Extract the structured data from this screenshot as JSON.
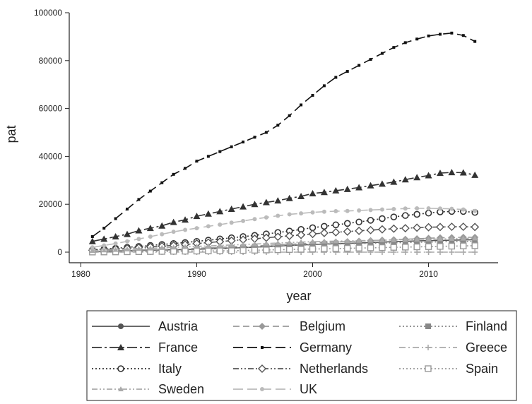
{
  "chart_data": {
    "type": "line",
    "title": "",
    "xlabel": "year",
    "ylabel": "pat",
    "xlim": [
      1979,
      2016
    ],
    "ylim": [
      0,
      100000
    ],
    "xticks": [
      1980,
      1990,
      2000,
      2010
    ],
    "xtick_labels": [
      "1980",
      "1990",
      "2000",
      "2010"
    ],
    "yticks": [
      0,
      20000,
      40000,
      60000,
      80000,
      100000
    ],
    "ytick_labels": [
      "0",
      "20000",
      "40000",
      "60000",
      "80000",
      "100000"
    ],
    "grid": false,
    "legend_position": "bottom",
    "x": [
      1981,
      1982,
      1983,
      1984,
      1985,
      1986,
      1987,
      1988,
      1989,
      1990,
      1991,
      1992,
      1993,
      1994,
      1995,
      1996,
      1997,
      1998,
      1999,
      2000,
      2001,
      2002,
      2003,
      2004,
      2005,
      2006,
      2007,
      2008,
      2009,
      2010,
      2011,
      2012,
      2013,
      2014
    ],
    "series": [
      {
        "name": "Austria",
        "marker": "circle",
        "dash": "solid",
        "color": "#555555",
        "values": [
          300,
          400,
          500,
          600,
          700,
          800,
          900,
          1000,
          1100,
          1200,
          1400,
          1500,
          1700,
          1900,
          2100,
          2300,
          2500,
          2800,
          3000,
          3200,
          3400,
          3500,
          3700,
          3800,
          4000,
          4200,
          4400,
          4500,
          4700,
          4800,
          4900,
          5000,
          5100,
          5200
        ]
      },
      {
        "name": "Belgium",
        "marker": "diamond",
        "dash": "dash",
        "color": "#999999",
        "values": [
          400,
          500,
          600,
          700,
          900,
          1000,
          1100,
          1200,
          1400,
          1600,
          1800,
          2000,
          2200,
          2400,
          2600,
          2800,
          3100,
          3300,
          3500,
          3800,
          4000,
          4200,
          4400,
          4600,
          4800,
          5000,
          5200,
          5400,
          5600,
          5800,
          6000,
          6100,
          6200,
          6200
        ]
      },
      {
        "name": "Finland",
        "marker": "square",
        "dash": "dot",
        "color": "#888888",
        "values": [
          150,
          200,
          300,
          400,
          500,
          600,
          700,
          800,
          900,
          1100,
          1300,
          1500,
          1700,
          1900,
          2100,
          2300,
          2500,
          2700,
          2900,
          3100,
          3300,
          3400,
          3500,
          3600,
          3700,
          3800,
          3900,
          4000,
          4100,
          4200,
          4300,
          4400,
          4400,
          4500
        ]
      },
      {
        "name": "France",
        "marker": "triangle",
        "dash": "longdash-dot",
        "color": "#333333",
        "values": [
          4500,
          5500,
          6500,
          7500,
          9000,
          10000,
          11000,
          12500,
          13500,
          15000,
          16000,
          17000,
          18000,
          19000,
          20000,
          20800,
          21500,
          22500,
          23300,
          24500,
          25000,
          25700,
          26300,
          27000,
          27800,
          28500,
          29300,
          30300,
          31200,
          32000,
          33000,
          33300,
          33200,
          32200
        ]
      },
      {
        "name": "Germany",
        "marker": "smallsquare",
        "dash": "longdash",
        "color": "#111111",
        "values": [
          6500,
          10000,
          14000,
          18000,
          22000,
          25500,
          29000,
          32500,
          35000,
          38000,
          40000,
          42000,
          44000,
          46000,
          48000,
          50000,
          53000,
          57000,
          61500,
          65500,
          69500,
          73000,
          75500,
          78000,
          80500,
          83000,
          85500,
          87500,
          89000,
          90300,
          91000,
          91500,
          90500,
          88000
        ]
      },
      {
        "name": "Greece",
        "marker": "plus",
        "dash": "dash-dot",
        "color": "#aaaaaa",
        "values": [
          0,
          0,
          0,
          0,
          0,
          0,
          0,
          0,
          0,
          0,
          0,
          0,
          0,
          0,
          0,
          0,
          0,
          0,
          0,
          0,
          0,
          0,
          0,
          0,
          0,
          0,
          0,
          0,
          0,
          0,
          0,
          0,
          0,
          0
        ]
      },
      {
        "name": "Italy",
        "marker": "ring",
        "dash": "dot",
        "color": "#333333",
        "values": [
          1000,
          1300,
          1600,
          2000,
          2400,
          2800,
          3200,
          3600,
          4000,
          4500,
          5000,
          5500,
          6000,
          6500,
          7000,
          7600,
          8200,
          8800,
          9500,
          10200,
          10800,
          11400,
          12000,
          12600,
          13300,
          14000,
          14700,
          15300,
          15800,
          16300,
          16800,
          17000,
          17000,
          16600
        ]
      },
      {
        "name": "Netherlands",
        "marker": "hollowdiamond",
        "dash": "dash-dot-dot",
        "color": "#555555",
        "values": [
          800,
          1000,
          1300,
          1600,
          1900,
          2200,
          2500,
          2800,
          3200,
          3600,
          4000,
          4400,
          4800,
          5200,
          5600,
          6000,
          6400,
          6800,
          7200,
          7600,
          8000,
          8300,
          8600,
          8900,
          9200,
          9500,
          9800,
          10000,
          10200,
          10400,
          10500,
          10600,
          10600,
          10500
        ]
      },
      {
        "name": "Spain",
        "marker": "hollowsquare",
        "dash": "dot",
        "color": "#999999",
        "values": [
          50,
          80,
          100,
          150,
          200,
          250,
          300,
          350,
          400,
          450,
          500,
          550,
          600,
          700,
          800,
          900,
          1000,
          1100,
          1200,
          1300,
          1400,
          1500,
          1600,
          1700,
          1800,
          1900,
          2000,
          2100,
          2200,
          2300,
          2400,
          2500,
          2600,
          2700
        ]
      },
      {
        "name": "Sweden",
        "marker": "smalltriangle",
        "dash": "dash-dot-dot",
        "color": "#aaaaaa",
        "values": [
          600,
          800,
          1000,
          1200,
          1400,
          1600,
          1800,
          2000,
          2200,
          2400,
          2600,
          2800,
          3000,
          3200,
          3400,
          3600,
          3800,
          4000,
          4200,
          4400,
          4500,
          4600,
          4700,
          4800,
          4900,
          5000,
          5100,
          5200,
          5300,
          5400,
          5500,
          5600,
          5700,
          5800
        ]
      },
      {
        "name": "UK",
        "marker": "dot",
        "dash": "longdash",
        "color": "#bbbbbb",
        "values": [
          2000,
          2800,
          3600,
          4500,
          5500,
          6500,
          7500,
          8500,
          9300,
          10000,
          10800,
          11500,
          12300,
          13000,
          13800,
          14500,
          15200,
          15800,
          16200,
          16600,
          16900,
          17100,
          17200,
          17400,
          17600,
          17800,
          18000,
          18200,
          18300,
          18300,
          18200,
          18100,
          17800,
          17200
        ]
      }
    ]
  }
}
